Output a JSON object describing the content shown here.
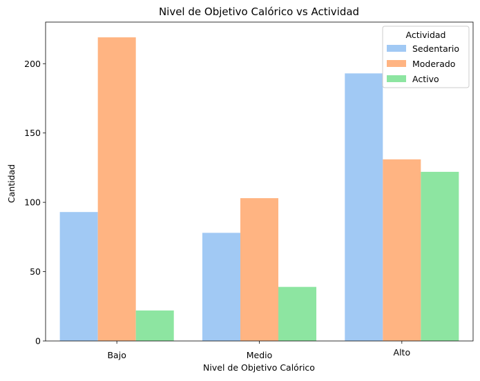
{
  "chart_data": {
    "type": "bar",
    "title": "Nivel de Objetivo Calórico vs Actividad",
    "xlabel": "Nivel de Objetivo Calórico",
    "ylabel": "Cantidad",
    "categories": [
      "Bajo",
      "Medio",
      "Alto"
    ],
    "series": [
      {
        "name": "Sedentario",
        "color": "#a1c9f4",
        "values": [
          93,
          78,
          193
        ]
      },
      {
        "name": "Moderado",
        "color": "#ffb482",
        "values": [
          219,
          103,
          131
        ]
      },
      {
        "name": "Activo",
        "color": "#8de5a1",
        "values": [
          22,
          39,
          122
        ]
      }
    ],
    "ylim": [
      0,
      230
    ],
    "yticks": [
      0,
      50,
      100,
      150,
      200
    ],
    "legend": {
      "title": "Actividad",
      "placement": "top-right"
    },
    "grid": false
  }
}
